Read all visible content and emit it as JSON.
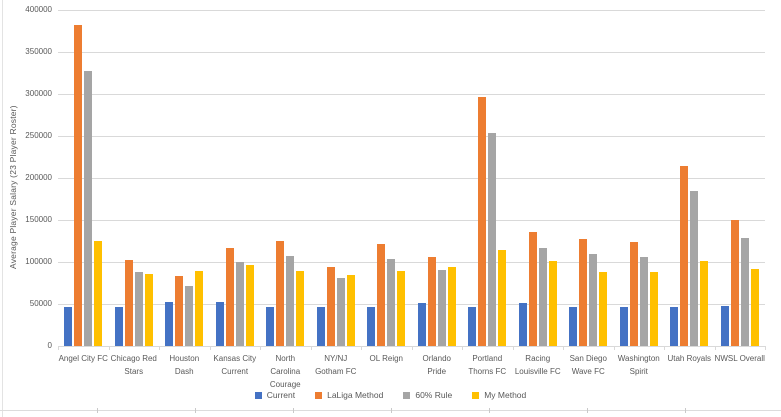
{
  "chart_data": {
    "type": "bar",
    "title": "",
    "xlabel": "",
    "ylabel": "Average Player Salary (23 Player Roster)",
    "ylim": [
      0,
      400000
    ],
    "yticks": [
      0,
      50000,
      100000,
      150000,
      200000,
      250000,
      300000,
      350000,
      400000
    ],
    "grid": true,
    "legend_position": "bottom",
    "categories": [
      "Angel City FC",
      "Chicago Red Stars",
      "Houston Dash",
      "Kansas City Current",
      "North Carolina Courage",
      "NY/NJ Gotham FC",
      "OL Reign",
      "Orlando Pride",
      "Portland Thorns FC",
      "Racing Louisville FC",
      "San Diego Wave FC",
      "Washington Spirit",
      "Utah Royals",
      "NWSL Overall"
    ],
    "category_display_labels": [
      "Angel City FC",
      "Chicago Red\nStars",
      "Houston\nDash",
      "Kansas City\nCurrent",
      "North\nCarolina\nCourage",
      "NY/NJ\nGotham FC",
      "OL Reign",
      "Orlando\nPride",
      "Portland\nThorns FC",
      "Racing\nLouisville FC",
      "San Diego\nWave FC",
      "Washington\nSpirit",
      "Utah Royals",
      "NWSL Overall"
    ],
    "series": [
      {
        "name": "Current",
        "color": "#4472C4",
        "values": [
          47000,
          47000,
          52000,
          52000,
          46000,
          46000,
          46000,
          51000,
          47000,
          51000,
          47000,
          46000,
          46000,
          48000
        ]
      },
      {
        "name": "LaLiga Method",
        "color": "#ED7D31",
        "values": [
          382000,
          102000,
          83000,
          117000,
          125000,
          94000,
          122000,
          106000,
          296000,
          136000,
          128000,
          124000,
          214000,
          150000
        ]
      },
      {
        "name": "60% Rule",
        "color": "#A5A5A5",
        "values": [
          327000,
          88000,
          71000,
          100000,
          107000,
          81000,
          104000,
          91000,
          254000,
          117000,
          109000,
          106000,
          184000,
          129000
        ]
      },
      {
        "name": "My Method",
        "color": "#FFC000",
        "values": [
          125000,
          86000,
          89000,
          97000,
          89000,
          84000,
          89000,
          94000,
          114000,
          101000,
          88000,
          88000,
          101000,
          92000
        ]
      }
    ]
  },
  "colors": {
    "gridline": "#D9D9D9",
    "axis_text": "#595959",
    "background": "#FFFFFF",
    "series_current": "#4472C4",
    "series_laliga": "#ED7D31",
    "series_60rule": "#A5A5A5",
    "series_mymethod": "#FFC000"
  }
}
